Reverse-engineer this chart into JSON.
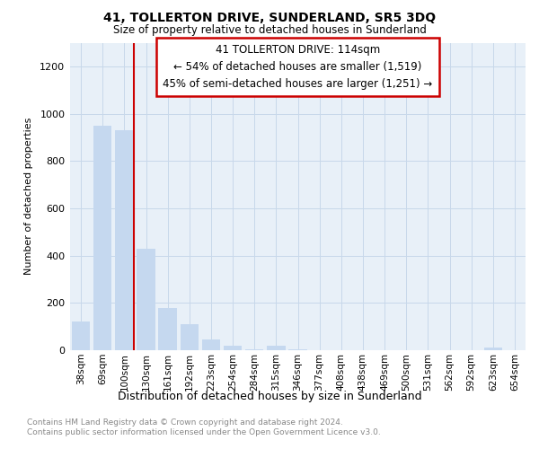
{
  "title": "41, TOLLERTON DRIVE, SUNDERLAND, SR5 3DQ",
  "subtitle": "Size of property relative to detached houses in Sunderland",
  "xlabel": "Distribution of detached houses by size in Sunderland",
  "ylabel": "Number of detached properties",
  "categories": [
    "38sqm",
    "69sqm",
    "100sqm",
    "130sqm",
    "161sqm",
    "192sqm",
    "223sqm",
    "254sqm",
    "284sqm",
    "315sqm",
    "346sqm",
    "377sqm",
    "408sqm",
    "438sqm",
    "469sqm",
    "500sqm",
    "531sqm",
    "562sqm",
    "592sqm",
    "623sqm",
    "654sqm"
  ],
  "values": [
    120,
    950,
    930,
    430,
    180,
    110,
    47,
    18,
    5,
    18,
    2,
    1,
    1,
    1,
    1,
    1,
    1,
    1,
    1,
    10,
    1
  ],
  "bar_color": "#c5d8ef",
  "highlight_line_color": "#cc0000",
  "highlight_index": 2,
  "annotation_text_line1": "41 TOLLERTON DRIVE: 114sqm",
  "annotation_text_line2": "← 54% of detached houses are smaller (1,519)",
  "annotation_text_line3": "45% of semi-detached houses are larger (1,251) →",
  "ylim": [
    0,
    1300
  ],
  "yticks": [
    0,
    200,
    400,
    600,
    800,
    1000,
    1200
  ],
  "grid_color": "#c8d8ea",
  "plot_bg_color": "#e8f0f8",
  "footer_line1": "Contains HM Land Registry data © Crown copyright and database right 2024.",
  "footer_line2": "Contains public sector information licensed under the Open Government Licence v3.0.",
  "figsize": [
    6.0,
    5.0
  ],
  "dpi": 100
}
